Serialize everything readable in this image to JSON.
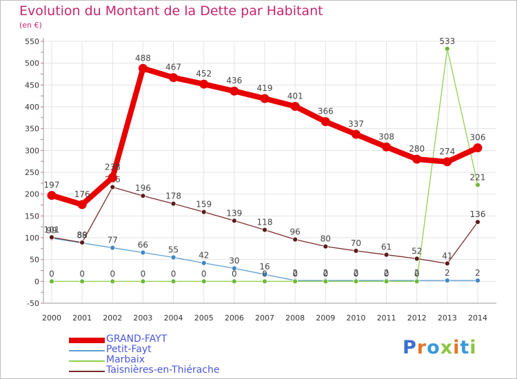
{
  "title": "Evolution du Montant de la Dette par Habitant",
  "unit_label": "(en €)",
  "logo": {
    "text": "Proxiti",
    "letters": [
      {
        "ch": "P",
        "color": "#3a6fd0"
      },
      {
        "ch": "r",
        "color": "#e4742a"
      },
      {
        "ch": "o",
        "color": "#3a9ad8"
      },
      {
        "ch": "x",
        "color": "#8cc63f"
      },
      {
        "ch": "i",
        "color": "#e4742a"
      },
      {
        "ch": "t",
        "color": "#3a9ad8"
      },
      {
        "ch": "i",
        "color": "#8cc63f"
      }
    ]
  },
  "chart_data": {
    "type": "line",
    "title": "Evolution du Montant de la Dette par Habitant",
    "ylabel": "(en €)",
    "xlabel": "",
    "x": [
      2000,
      2001,
      2002,
      2003,
      2004,
      2005,
      2006,
      2007,
      2008,
      2009,
      2010,
      2011,
      2012,
      2013,
      2014
    ],
    "ylim": [
      -50,
      550
    ],
    "yticks": [
      -50,
      0,
      50,
      100,
      150,
      200,
      250,
      300,
      350,
      400,
      450,
      500,
      550
    ],
    "grid": true,
    "legend_position": "bottom-left",
    "series": [
      {
        "name": "GRAND-FAYT",
        "color": "#e60000",
        "emphasis": true,
        "values": [
          197,
          176,
          238,
          488,
          467,
          452,
          436,
          419,
          401,
          366,
          337,
          308,
          280,
          274,
          306
        ]
      },
      {
        "name": "Petit-Fayt",
        "color": "#5f9fd3",
        "emphasis": false,
        "values": [
          99,
          88,
          77,
          66,
          55,
          42,
          30,
          16,
          2,
          2,
          2,
          2,
          2,
          2,
          2
        ]
      },
      {
        "name": "Marbaix",
        "color": "#8fd14f",
        "emphasis": false,
        "values": [
          0,
          0,
          0,
          0,
          0,
          0,
          0,
          0,
          0,
          0,
          0,
          0,
          0,
          533,
          221
        ]
      },
      {
        "name": "Taisnières-en-Thiérache",
        "color": "#7a2a2a",
        "emphasis": false,
        "values": [
          101,
          89,
          216,
          196,
          178,
          159,
          139,
          118,
          96,
          80,
          70,
          61,
          52,
          41,
          136
        ]
      }
    ]
  }
}
